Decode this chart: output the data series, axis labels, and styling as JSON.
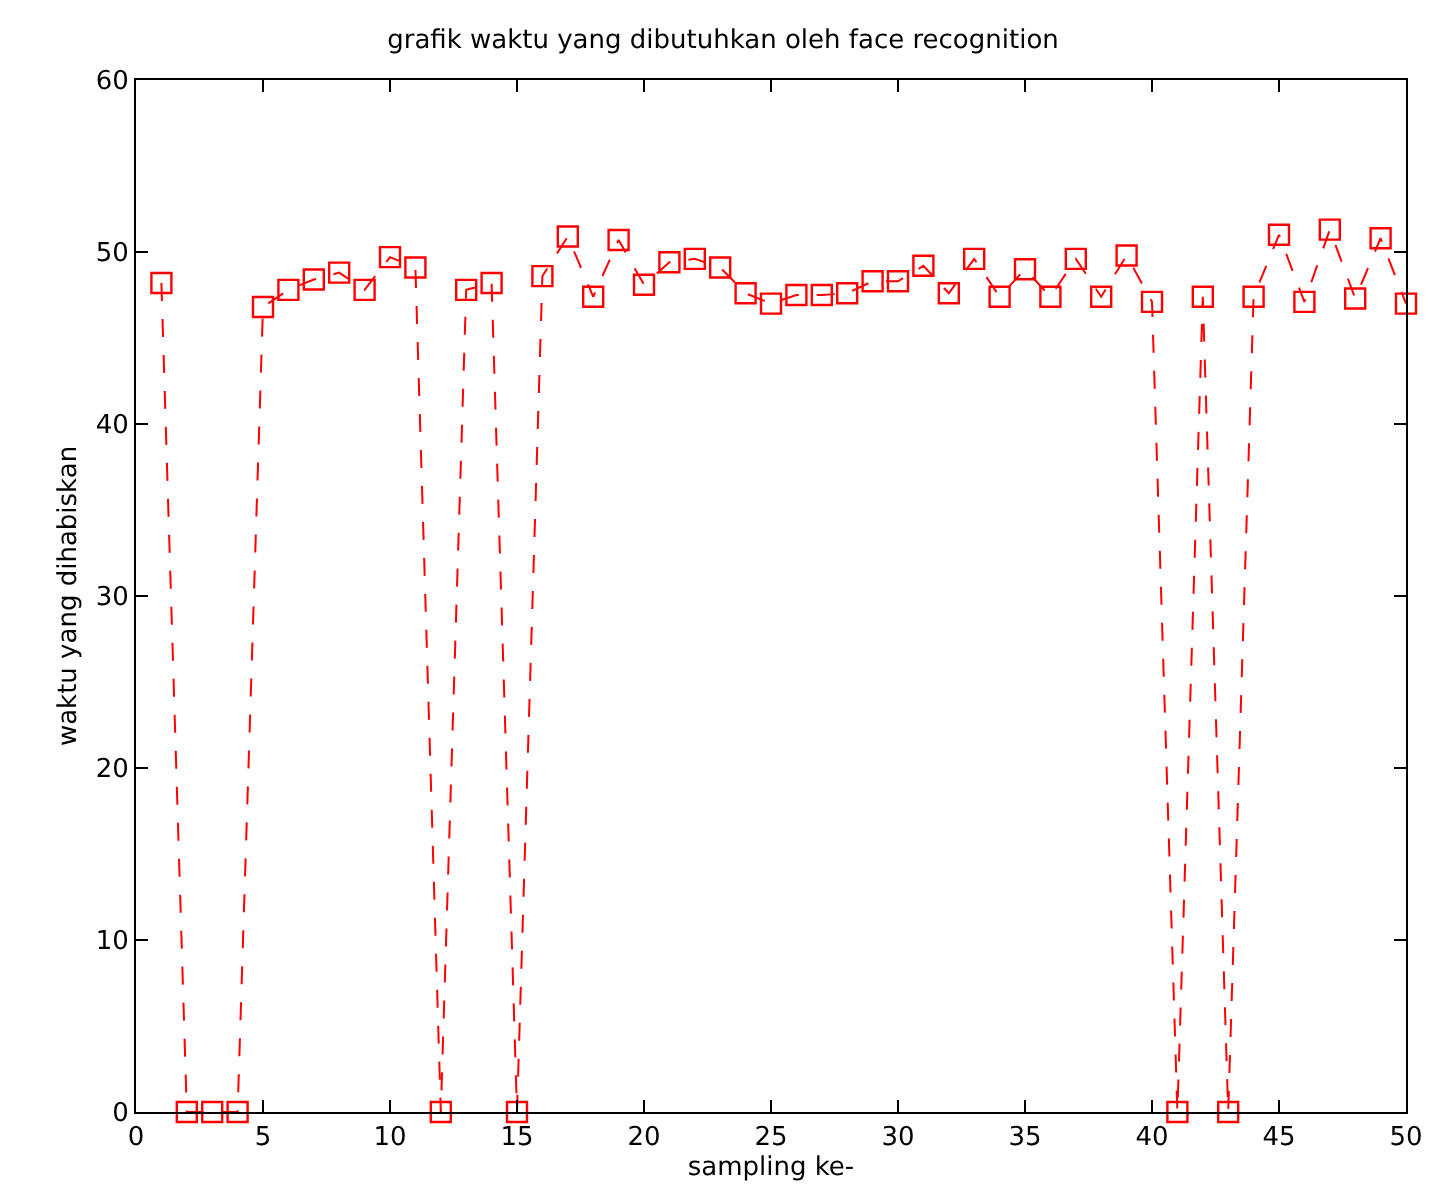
{
  "chart_data": {
    "type": "line",
    "title": "grafik waktu yang dibutuhkan oleh face recognition",
    "xlabel": "sampling ke-",
    "ylabel": "waktu yang dihabiskan",
    "x": [
      1,
      2,
      3,
      4,
      5,
      6,
      7,
      8,
      9,
      10,
      11,
      12,
      13,
      14,
      15,
      16,
      17,
      18,
      19,
      20,
      21,
      22,
      23,
      24,
      25,
      26,
      27,
      28,
      29,
      30,
      31,
      32,
      33,
      34,
      35,
      36,
      37,
      38,
      39,
      40,
      41,
      42,
      43,
      44,
      45,
      46,
      47,
      48,
      49,
      50
    ],
    "series": [
      {
        "color": "#ff0000",
        "values": [
          48.2,
          0,
          0,
          0,
          46.8,
          47.8,
          48.4,
          48.8,
          47.8,
          49.7,
          49.1,
          0,
          47.8,
          48.2,
          0,
          48.6,
          50.9,
          47.4,
          50.7,
          48.1,
          49.4,
          49.6,
          49.1,
          47.6,
          47.0,
          47.5,
          47.5,
          47.6,
          48.3,
          48.3,
          49.2,
          47.6,
          49.6,
          47.4,
          49.0,
          47.4,
          49.6,
          47.4,
          49.8,
          47.1,
          0,
          47.4,
          0,
          47.4,
          51.0,
          47.1,
          51.3,
          47.3,
          50.8,
          47.0
        ]
      }
    ],
    "xlim": [
      0,
      50
    ],
    "xticks": [
      0,
      5,
      10,
      15,
      20,
      25,
      30,
      35,
      40,
      45,
      50
    ],
    "ylim": [
      0,
      60
    ],
    "yticks": [
      0,
      10,
      20,
      30,
      40,
      50,
      60
    ],
    "marker": "square",
    "line_style": "dashed",
    "legend": false
  }
}
